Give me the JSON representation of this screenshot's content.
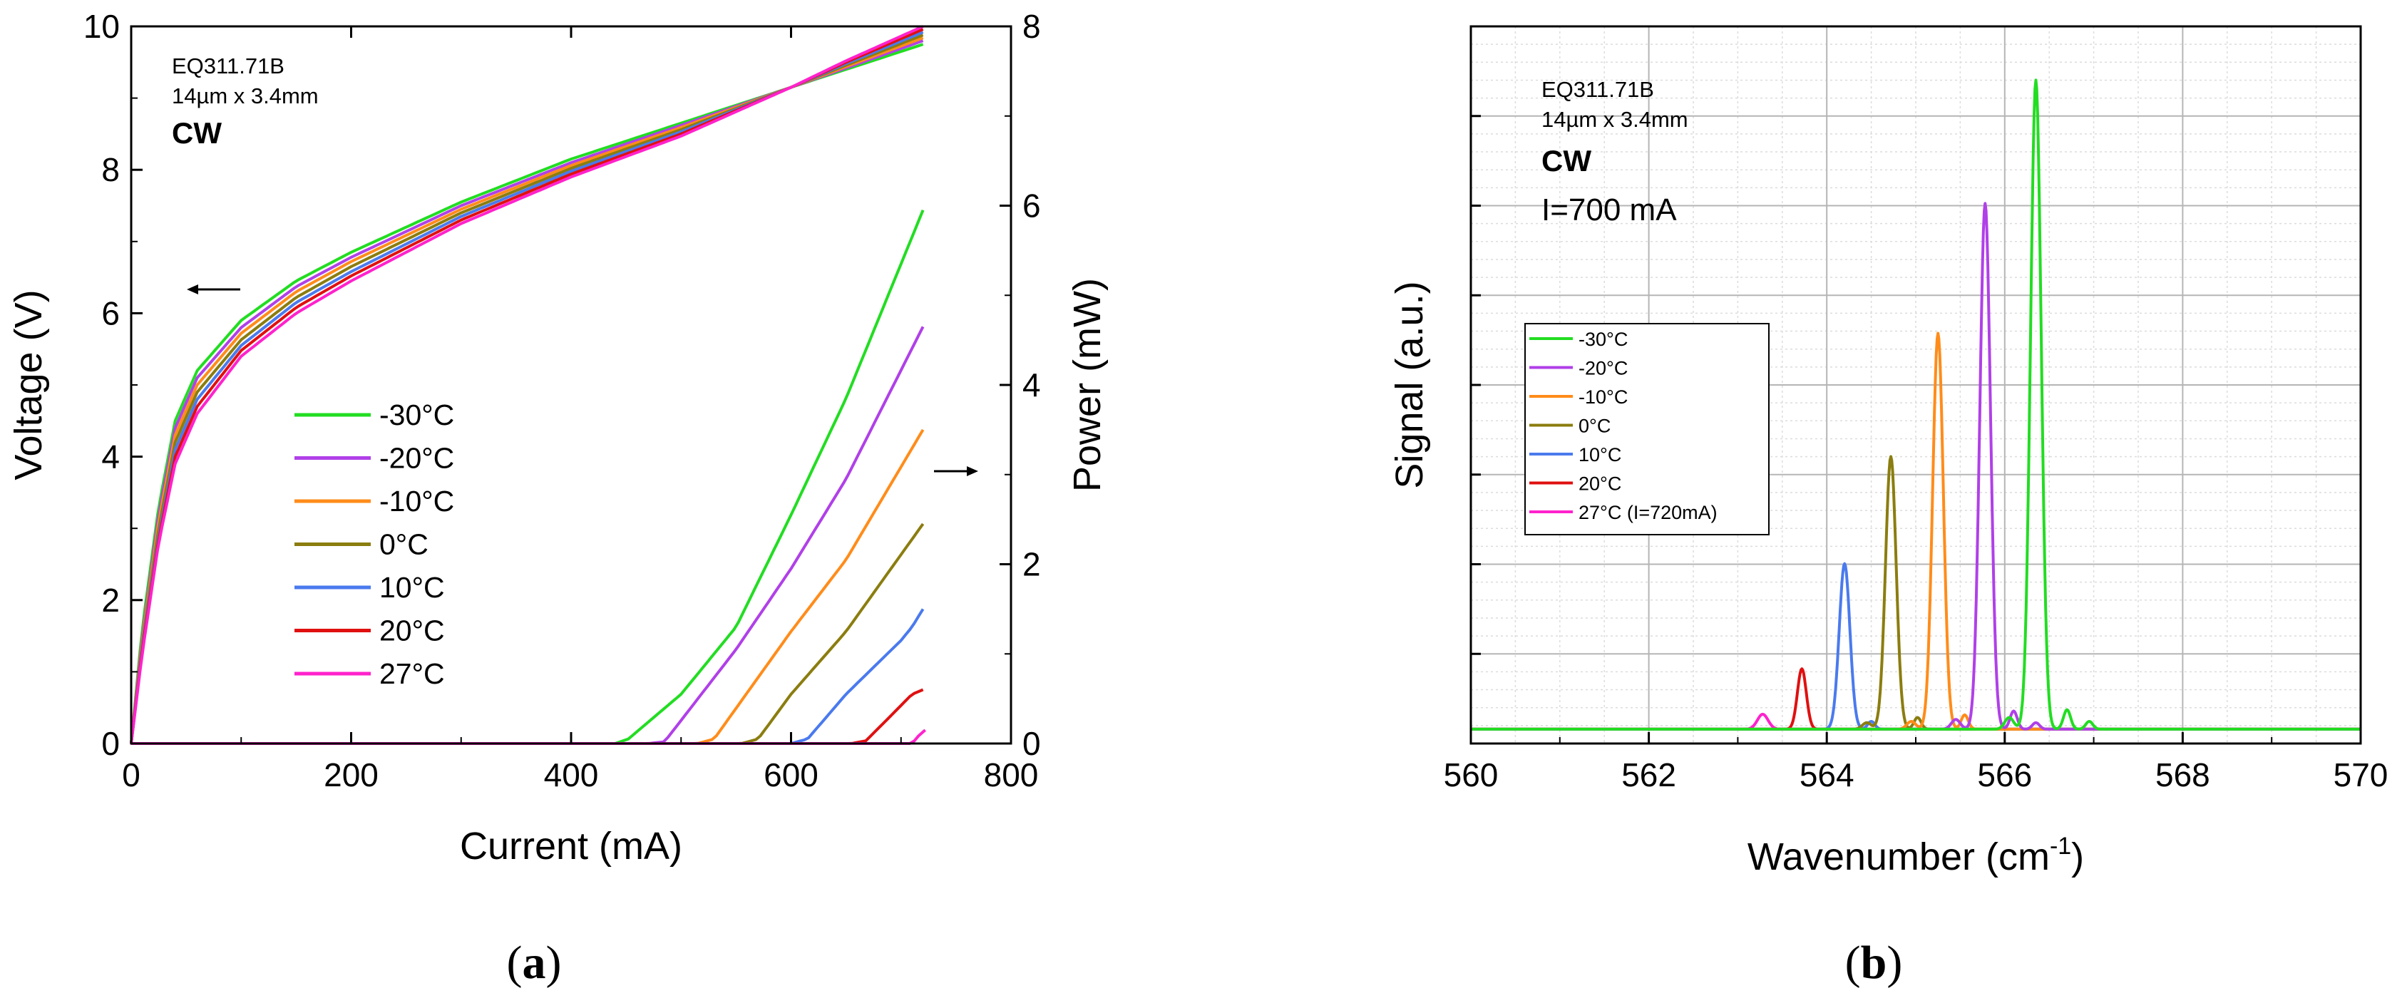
{
  "chart_data": [
    {
      "id": "a",
      "type": "line",
      "caption": {
        "open": "(",
        "letter": "a",
        "close": ")"
      },
      "annotation": {
        "line1": "EQ311.71B",
        "line2": "14µm x 3.4mm",
        "mode": "CW"
      },
      "xlabel": "Current (mA)",
      "ylabel_left": "Voltage (V)",
      "ylabel_right": "Power (mW)",
      "xlim": [
        0,
        800
      ],
      "ylim_left": [
        0,
        10
      ],
      "ylim_right": [
        0,
        8
      ],
      "x_ticks": [
        "0",
        "200",
        "400",
        "600",
        "800"
      ],
      "y_left_ticks": [
        "0",
        "2",
        "4",
        "6",
        "8",
        "10"
      ],
      "y_right_ticks": [
        "0",
        "2",
        "4",
        "6",
        "8"
      ],
      "legend_position": "center-left",
      "series": [
        {
          "name": "-30°C",
          "color": "#22dd22",
          "voltage": {
            "I": [
              0,
              10,
              25,
              40,
              60,
              100,
              150,
              200,
              300,
              400,
              500,
              600,
              650,
              720
            ],
            "V": [
              0,
              1.6,
              3.3,
              4.5,
              5.2,
              5.9,
              6.45,
              6.85,
              7.55,
              8.15,
              8.65,
              9.15,
              9.4,
              9.75
            ]
          },
          "power": {
            "I": [
              0,
              440,
              452,
              500,
              550,
              600,
              650,
              720
            ],
            "P": [
              0,
              0,
              0.05,
              0.55,
              1.3,
              2.55,
              3.85,
              5.95
            ]
          }
        },
        {
          "name": "-20°C",
          "color": "#b040e8",
          "voltage": {
            "I": [
              0,
              10,
              25,
              40,
              60,
              100,
              150,
              200,
              300,
              400,
              500,
              600,
              650,
              720
            ],
            "V": [
              0,
              1.5,
              3.2,
              4.4,
              5.1,
              5.8,
              6.37,
              6.78,
              7.5,
              8.1,
              8.62,
              9.15,
              9.42,
              9.8
            ]
          },
          "power": {
            "I": [
              0,
              470,
              485,
              550,
              600,
              650,
              720
            ],
            "P": [
              0,
              0,
              0.02,
              1.05,
              1.95,
              2.95,
              4.65
            ]
          }
        },
        {
          "name": "-10°C",
          "color": "#ff8c1a",
          "voltage": {
            "I": [
              0,
              10,
              25,
              40,
              60,
              100,
              150,
              200,
              300,
              400,
              500,
              600,
              650,
              720
            ],
            "V": [
              0,
              1.45,
              3.1,
              4.3,
              5.0,
              5.72,
              6.3,
              6.72,
              7.45,
              8.06,
              8.59,
              9.15,
              9.44,
              9.84
            ]
          },
          "power": {
            "I": [
              0,
              515,
              530,
              600,
              650,
              720
            ],
            "P": [
              0,
              0,
              0.05,
              1.25,
              2.05,
              3.5
            ]
          }
        },
        {
          "name": " 0°C",
          "color": "#8b7d0f",
          "voltage": {
            "I": [
              0,
              10,
              25,
              40,
              60,
              100,
              150,
              200,
              300,
              400,
              500,
              600,
              650,
              720
            ],
            "V": [
              0,
              1.4,
              3.0,
              4.2,
              4.9,
              5.63,
              6.22,
              6.65,
              7.4,
              8.02,
              8.56,
              9.15,
              9.46,
              9.88
            ]
          },
          "power": {
            "I": [
              0,
              555,
              570,
              600,
              650,
              720
            ],
            "P": [
              0,
              0,
              0.05,
              0.55,
              1.25,
              2.45
            ]
          }
        },
        {
          "name": "10°C",
          "color": "#4a7aee",
          "voltage": {
            "I": [
              0,
              10,
              25,
              40,
              60,
              100,
              150,
              200,
              300,
              400,
              500,
              600,
              650,
              720
            ],
            "V": [
              0,
              1.35,
              2.9,
              4.1,
              4.8,
              5.55,
              6.15,
              6.58,
              7.35,
              7.98,
              8.53,
              9.15,
              9.48,
              9.92
            ]
          },
          "power": {
            "I": [
              0,
              600,
              615,
              650,
              700,
              710,
              720
            ],
            "P": [
              0,
              0,
              0.05,
              0.55,
              1.15,
              1.3,
              1.5
            ]
          }
        },
        {
          "name": "20°C",
          "color": "#e01010",
          "voltage": {
            "I": [
              0,
              10,
              25,
              40,
              60,
              100,
              150,
              200,
              300,
              400,
              500,
              600,
              650,
              720
            ],
            "V": [
              0,
              1.3,
              2.85,
              4.0,
              4.7,
              5.48,
              6.08,
              6.52,
              7.3,
              7.94,
              8.5,
              9.15,
              9.5,
              9.96
            ]
          },
          "power": {
            "I": [
              0,
              655,
              668,
              690,
              710,
              720
            ],
            "P": [
              0,
              0,
              0.03,
              0.3,
              0.55,
              0.6
            ]
          }
        },
        {
          "name": "27°C",
          "color": "#ff22cc",
          "voltage": {
            "I": [
              0,
              10,
              25,
              40,
              60,
              100,
              150,
              200,
              300,
              400,
              500,
              600,
              650,
              720
            ],
            "V": [
              0,
              1.25,
              2.8,
              3.9,
              4.6,
              5.4,
              6.0,
              6.45,
              7.25,
              7.9,
              8.47,
              9.15,
              9.52,
              10.0
            ]
          },
          "power": {
            "I": [
              0,
              710,
              717,
              722
            ],
            "P": [
              0,
              0,
              0.1,
              0.15
            ]
          }
        }
      ]
    },
    {
      "id": "b",
      "type": "line",
      "caption": {
        "open": "(",
        "letter": "b",
        "close": ")"
      },
      "annotation": {
        "line1": "EQ311.71B",
        "line2": "14µm x 3.4mm",
        "mode": "CW",
        "current": "I=700 mA"
      },
      "xlabel_main": "Wavenumber (cm",
      "xlabel_sup": "-1",
      "xlabel_end": ")",
      "ylabel": "Signal (a.u.)",
      "xlim": [
        560,
        570
      ],
      "ylim": [
        0,
        1
      ],
      "x_ticks": [
        "560",
        "562",
        "564",
        "566",
        "568",
        "570"
      ],
      "legend_position": "upper-left",
      "series": [
        {
          "name": "-30°C",
          "color": "#22dd22",
          "peaks": [
            [
              566.35,
              1.0,
              0.06
            ],
            [
              566.05,
              0.018,
              0.05
            ],
            [
              566.7,
              0.03,
              0.04
            ],
            [
              566.95,
              0.012,
              0.04
            ]
          ]
        },
        {
          "name": "-20°C",
          "color": "#b040e8",
          "peaks": [
            [
              565.78,
              0.81,
              0.06
            ],
            [
              565.45,
              0.015,
              0.05
            ],
            [
              566.1,
              0.028,
              0.04
            ],
            [
              566.35,
              0.01,
              0.04
            ]
          ]
        },
        {
          "name": "-10°C",
          "color": "#ff8c1a",
          "peaks": [
            [
              565.25,
              0.61,
              0.06
            ],
            [
              564.95,
              0.012,
              0.05
            ],
            [
              565.55,
              0.022,
              0.04
            ]
          ]
        },
        {
          "name": "0°C",
          "color": "#8b7d0f",
          "peaks": [
            [
              564.72,
              0.42,
              0.06
            ],
            [
              564.45,
              0.01,
              0.05
            ],
            [
              565.02,
              0.018,
              0.04
            ]
          ]
        },
        {
          "name": "10°C",
          "color": "#4a7aee",
          "peaks": [
            [
              564.2,
              0.255,
              0.06
            ],
            [
              564.5,
              0.012,
              0.04
            ]
          ]
        },
        {
          "name": "20°C",
          "color": "#e01010",
          "peaks": [
            [
              563.72,
              0.093,
              0.05
            ]
          ]
        },
        {
          "name": "27°C (I=720mA)",
          "color": "#ff22cc",
          "peaks": [
            [
              563.28,
              0.023,
              0.06
            ]
          ]
        }
      ]
    }
  ]
}
